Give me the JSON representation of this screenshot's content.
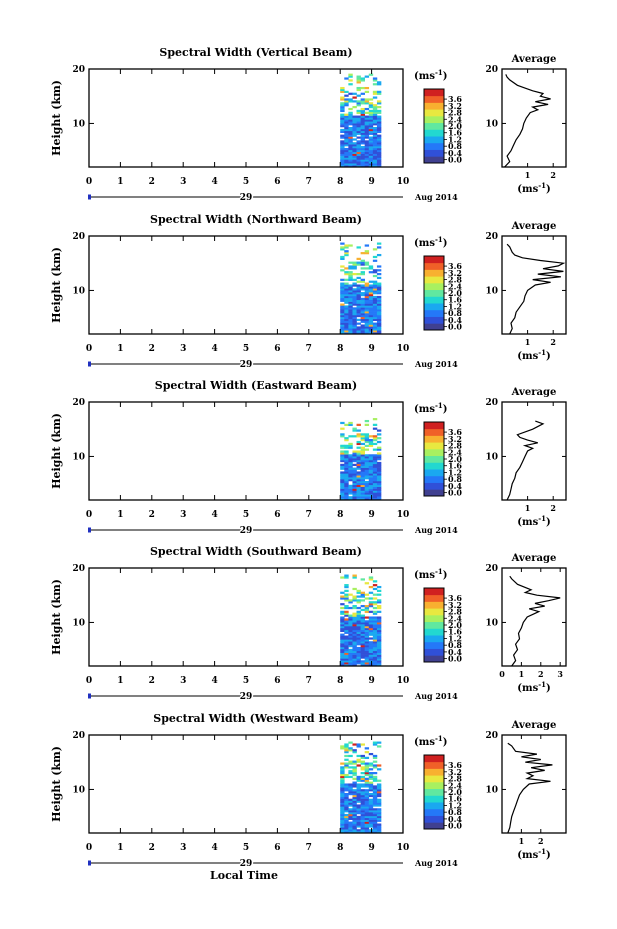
{
  "colorbar": {
    "unit_label": "(ms",
    "unit_exp": "-1",
    "unit_close": ")",
    "ticks": [
      "0.0",
      "0.4",
      "0.8",
      "1.2",
      "1.6",
      "2.0",
      "2.4",
      "2.8",
      "3.2",
      "3.6"
    ],
    "colors": [
      "#404090",
      "#3050d8",
      "#2478f8",
      "#1aa8f0",
      "#22d8d0",
      "#60e8a0",
      "#a8f060",
      "#e8e840",
      "#f8b030",
      "#f06028",
      "#d02020"
    ]
  },
  "footer_label": "Local Time",
  "chart_data": [
    {
      "type": "heatmap",
      "title": "Spectral Width (Vertical Beam)",
      "ylabel": "Height (km)",
      "xlabel": "",
      "x_ticks": [
        "0",
        "1",
        "2",
        "3",
        "4",
        "5",
        "6",
        "7",
        "8",
        "9",
        "10"
      ],
      "x_range": [
        0,
        10
      ],
      "y_range": [
        2,
        20
      ],
      "y_ticks": [
        "10",
        "20"
      ],
      "date_day": "29",
      "date_label": "Aug 2014",
      "data_time_range": [
        8.0,
        9.3
      ],
      "data_height_range": [
        2,
        19
      ],
      "avg_title": "Average",
      "avg_xlabel": "(ms",
      "avg_xlabel_exp": "-1",
      "avg_x_ticks": [
        "1",
        "2"
      ],
      "avg_x_range": [
        0,
        2.5
      ],
      "avg_profile": [
        [
          2.0,
          0.1
        ],
        [
          3,
          0.3
        ],
        [
          4,
          0.2
        ],
        [
          5,
          0.35
        ],
        [
          6,
          0.45
        ],
        [
          7,
          0.55
        ],
        [
          8,
          0.7
        ],
        [
          9,
          0.8
        ],
        [
          10,
          0.85
        ],
        [
          11,
          0.95
        ],
        [
          12,
          1.1
        ],
        [
          12.5,
          1.4
        ],
        [
          13,
          1.2
        ],
        [
          13.5,
          1.8
        ],
        [
          14,
          1.3
        ],
        [
          14.5,
          1.9
        ],
        [
          15,
          1.5
        ],
        [
          15.5,
          1.6
        ],
        [
          16,
          1.2
        ],
        [
          16.5,
          0.9
        ],
        [
          17,
          0.6
        ],
        [
          18,
          0.3
        ],
        [
          18.5,
          0.2
        ],
        [
          19,
          0.15
        ]
      ]
    },
    {
      "type": "heatmap",
      "title": "Spectral Width (Northward Beam)",
      "ylabel": "Height (km)",
      "xlabel": "",
      "x_ticks": [
        "0",
        "1",
        "2",
        "3",
        "4",
        "5",
        "6",
        "7",
        "8",
        "9",
        "10"
      ],
      "x_range": [
        0,
        10
      ],
      "y_range": [
        2,
        20
      ],
      "y_ticks": [
        "10",
        "20"
      ],
      "date_day": "29",
      "date_label": "Aug 2014",
      "data_time_range": [
        8.0,
        9.3
      ],
      "data_height_range": [
        2,
        18.5
      ],
      "avg_title": "Average",
      "avg_xlabel": "(ms",
      "avg_xlabel_exp": "-1",
      "avg_x_ticks": [
        "1",
        "2"
      ],
      "avg_x_range": [
        0,
        2.5
      ],
      "avg_profile": [
        [
          2.0,
          0.3
        ],
        [
          3,
          0.4
        ],
        [
          4,
          0.35
        ],
        [
          5,
          0.5
        ],
        [
          6,
          0.55
        ],
        [
          7,
          0.7
        ],
        [
          8,
          0.85
        ],
        [
          9,
          0.9
        ],
        [
          10,
          1.0
        ],
        [
          11,
          1.3
        ],
        [
          11.5,
          1.9
        ],
        [
          12,
          1.2
        ],
        [
          12.5,
          2.3
        ],
        [
          13,
          1.4
        ],
        [
          13.5,
          2.4
        ],
        [
          14,
          1.6
        ],
        [
          14.5,
          2.2
        ],
        [
          15,
          2.4
        ],
        [
          15.5,
          1.5
        ],
        [
          16,
          0.8
        ],
        [
          16.5,
          0.5
        ],
        [
          17,
          0.4
        ],
        [
          18,
          0.3
        ],
        [
          18.5,
          0.2
        ]
      ]
    },
    {
      "type": "heatmap",
      "title": "Spectral Width (Eastward Beam)",
      "ylabel": "Height (km)",
      "xlabel": "",
      "x_ticks": [
        "0",
        "1",
        "2",
        "3",
        "4",
        "5",
        "6",
        "7",
        "8",
        "9",
        "10"
      ],
      "x_range": [
        0,
        10
      ],
      "y_range": [
        2,
        20
      ],
      "y_ticks": [
        "10",
        "20"
      ],
      "date_day": "29",
      "date_label": "Aug 2014",
      "data_time_range": [
        8.0,
        9.3
      ],
      "data_height_range": [
        2,
        17
      ],
      "avg_title": "Average",
      "avg_xlabel": "(ms",
      "avg_xlabel_exp": "-1",
      "avg_x_ticks": [
        "1",
        "2"
      ],
      "avg_x_range": [
        0,
        2.5
      ],
      "avg_profile": [
        [
          2.0,
          0.2
        ],
        [
          3,
          0.3
        ],
        [
          4,
          0.35
        ],
        [
          5,
          0.4
        ],
        [
          6,
          0.5
        ],
        [
          7,
          0.55
        ],
        [
          8,
          0.7
        ],
        [
          9,
          0.8
        ],
        [
          10,
          0.9
        ],
        [
          11,
          1.0
        ],
        [
          11.5,
          1.2
        ],
        [
          12,
          0.9
        ],
        [
          12.5,
          1.4
        ],
        [
          13,
          1.0
        ],
        [
          13.5,
          0.7
        ],
        [
          14,
          0.6
        ],
        [
          15,
          1.2
        ],
        [
          16,
          1.6
        ],
        [
          16.5,
          1.3
        ]
      ]
    },
    {
      "type": "heatmap",
      "title": "Spectral Width (Southward Beam)",
      "ylabel": "Height (km)",
      "xlabel": "",
      "x_ticks": [
        "0",
        "1",
        "2",
        "3",
        "4",
        "5",
        "6",
        "7",
        "8",
        "9",
        "10"
      ],
      "x_range": [
        0,
        10
      ],
      "y_range": [
        2,
        20
      ],
      "y_ticks": [
        "10",
        "20"
      ],
      "date_day": "29",
      "date_label": "Aug 2014",
      "data_time_range": [
        8.0,
        9.3
      ],
      "data_height_range": [
        2,
        18.5
      ],
      "avg_title": "Average",
      "avg_xlabel": "(ms",
      "avg_xlabel_exp": "-1",
      "avg_x_ticks": [
        "0",
        "1",
        "2",
        "3"
      ],
      "avg_x_range": [
        0,
        3.3
      ],
      "avg_profile": [
        [
          2.0,
          0.5
        ],
        [
          3,
          0.7
        ],
        [
          4,
          0.6
        ],
        [
          5,
          0.8
        ],
        [
          6,
          0.7
        ],
        [
          7,
          0.9
        ],
        [
          8,
          0.85
        ],
        [
          9,
          1.0
        ],
        [
          10,
          1.1
        ],
        [
          11,
          1.3
        ],
        [
          11.5,
          1.6
        ],
        [
          12,
          1.9
        ],
        [
          12.5,
          1.4
        ],
        [
          13,
          2.2
        ],
        [
          13.5,
          1.7
        ],
        [
          14,
          2.4
        ],
        [
          14.5,
          3.0
        ],
        [
          15,
          1.8
        ],
        [
          15.5,
          1.2
        ],
        [
          16,
          1.5
        ],
        [
          17,
          0.8
        ],
        [
          18,
          0.5
        ],
        [
          18.5,
          0.4
        ]
      ]
    },
    {
      "type": "heatmap",
      "title": "Spectral Width (Westward Beam)",
      "ylabel": "Height (km)",
      "xlabel": "",
      "x_ticks": [
        "0",
        "1",
        "2",
        "3",
        "4",
        "5",
        "6",
        "7",
        "8",
        "9",
        "10"
      ],
      "x_range": [
        0,
        10
      ],
      "y_range": [
        2,
        20
      ],
      "y_ticks": [
        "10",
        "20"
      ],
      "date_day": "29",
      "date_label": "Aug 2014",
      "data_time_range": [
        8.0,
        9.3
      ],
      "data_height_range": [
        2,
        18.5
      ],
      "avg_title": "Average",
      "avg_xlabel": "(ms",
      "avg_xlabel_exp": "-1",
      "avg_x_ticks": [
        "1",
        "2"
      ],
      "avg_x_range": [
        0,
        3.3
      ],
      "avg_profile": [
        [
          2.0,
          0.3
        ],
        [
          3,
          0.4
        ],
        [
          4,
          0.45
        ],
        [
          5,
          0.5
        ],
        [
          6,
          0.6
        ],
        [
          7,
          0.7
        ],
        [
          8,
          0.8
        ],
        [
          9,
          0.9
        ],
        [
          10,
          1.1
        ],
        [
          11,
          1.4
        ],
        [
          11.5,
          2.5
        ],
        [
          12,
          1.3
        ],
        [
          12.5,
          1.6
        ],
        [
          13,
          1.3
        ],
        [
          13.5,
          2.2
        ],
        [
          14,
          1.5
        ],
        [
          14.5,
          2.6
        ],
        [
          15,
          1.2
        ],
        [
          15.5,
          2.0
        ],
        [
          16,
          1.0
        ],
        [
          16.5,
          1.8
        ],
        [
          17,
          0.7
        ],
        [
          18,
          0.5
        ],
        [
          18.5,
          0.3
        ]
      ]
    }
  ]
}
